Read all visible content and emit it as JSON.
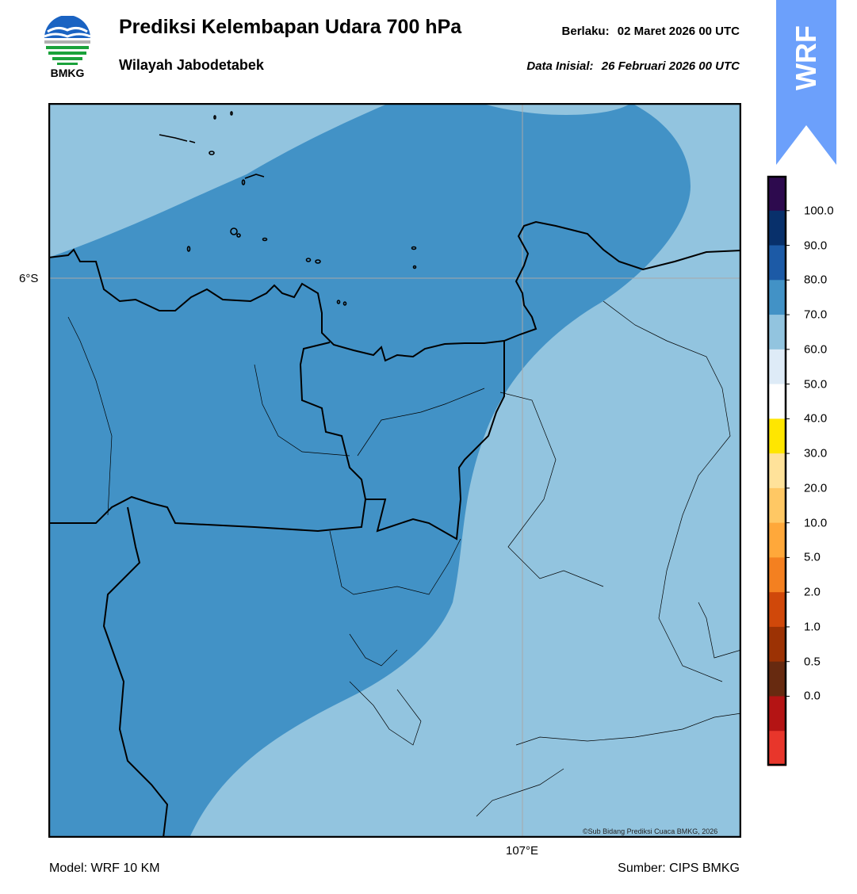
{
  "header": {
    "logo_text": "BMKG",
    "title": "Prediksi Kelembapan Udara 700 hPa",
    "subtitle": "Wilayah Jabodetabek",
    "valid_label": "Berlaku:",
    "valid_date": "02 Maret 2026 00 UTC",
    "init_label": "Data Inisial:",
    "init_date": "26 Februari 2026 00 UTC"
  },
  "badge": {
    "text": "WRF",
    "color": "#6ca0fb"
  },
  "map": {
    "lat_label": "6°S",
    "lon_label": "107°E",
    "credit": "©Sub Bidang Prediksi Cuaca BMKG, 2026",
    "colors": {
      "class_70_80": "#4292c6",
      "class_60_70": "#92c4df",
      "outline": "#000000"
    }
  },
  "colorbar": {
    "labels": [
      "100.0",
      "90.0",
      "80.0",
      "70.0",
      "60.0",
      "50.0",
      "40.0",
      "30.0",
      "20.0",
      "10.0",
      "5.0",
      "2.0",
      "1.0",
      "0.5",
      "0.0"
    ],
    "colors_top_to_bottom": [
      "#2d0a4e",
      "#08306b",
      "#1c5aa6",
      "#4292c6",
      "#92c4df",
      "#deebf7",
      "#ffffff",
      "#ffe600",
      "#ffe29a",
      "#ffc864",
      "#ffa83a",
      "#f48020",
      "#d0480a",
      "#9c3204",
      "#672a10",
      "#b41414",
      "#e8362b"
    ]
  },
  "footer": {
    "model": "Model: WRF 10 KM",
    "source": "Sumber: CIPS BMKG"
  }
}
